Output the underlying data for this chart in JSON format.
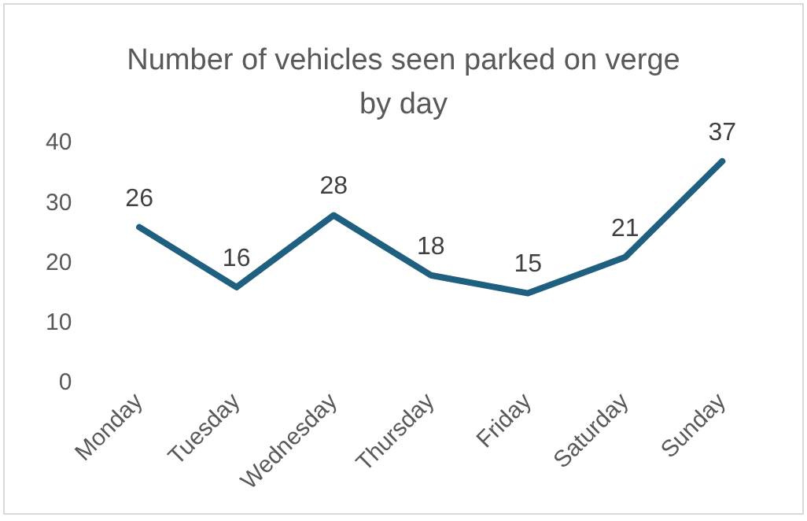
{
  "chart_data": {
    "type": "line",
    "title": "Number of vehicles seen parked on verge by day",
    "categories": [
      "Monday",
      "Tuesday",
      "Wednesday",
      "Thursday",
      "Friday",
      "Saturday",
      "Sunday"
    ],
    "series": [
      {
        "color": "#1f5f80",
        "values": [
          26,
          16,
          28,
          18,
          15,
          21,
          37
        ]
      }
    ],
    "ylim": [
      0,
      40
    ],
    "yticks": [
      0,
      10,
      20,
      30,
      40
    ],
    "grid": false,
    "legend": false,
    "marker": "none",
    "line_style": "solid",
    "data_labels": true
  }
}
